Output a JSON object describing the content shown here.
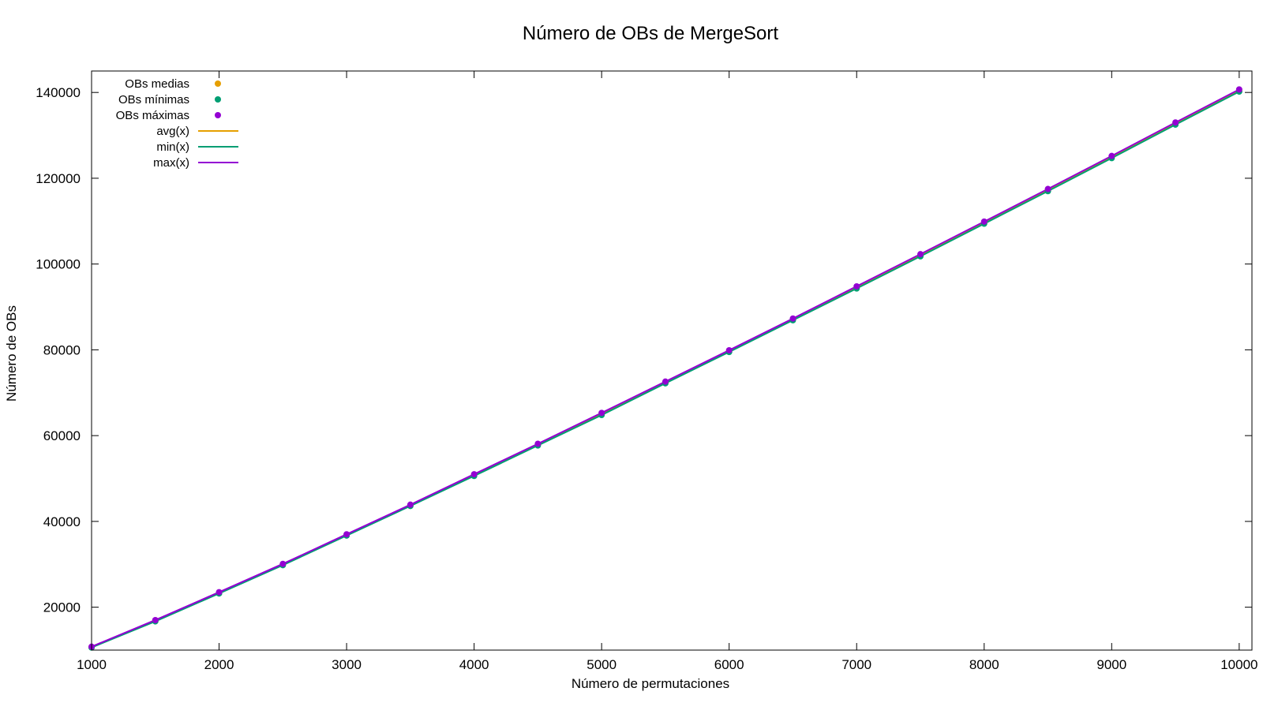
{
  "chart_data": {
    "type": "line",
    "title": "Número de OBs de MergeSort",
    "xlabel": "Número de permutaciones",
    "ylabel": "Número de OBs",
    "xlim": [
      1000,
      10100
    ],
    "ylim": [
      10000,
      145000
    ],
    "x_ticks": [
      1000,
      2000,
      3000,
      4000,
      5000,
      6000,
      7000,
      8000,
      9000,
      10000
    ],
    "y_ticks": [
      20000,
      40000,
      60000,
      80000,
      100000,
      120000,
      140000
    ],
    "grid": false,
    "legend_position": "top-left",
    "x": [
      1000,
      1500,
      2000,
      2500,
      3000,
      3500,
      4000,
      4500,
      5000,
      5500,
      6000,
      6500,
      7000,
      7500,
      8000,
      8500,
      9000,
      9500,
      10000
    ],
    "series": [
      {
        "name": "OBs medias",
        "kind": "points",
        "color": "#e69f00",
        "values": [
          10700,
          16850,
          23300,
          29900,
          36850,
          43750,
          50800,
          57900,
          65000,
          72400,
          79700,
          87100,
          94500,
          102000,
          109600,
          117200,
          124900,
          132700,
          140400
        ]
      },
      {
        "name": "OBs mínimas",
        "kind": "points",
        "color": "#009e73",
        "values": [
          10600,
          16700,
          23200,
          29800,
          36700,
          43600,
          50600,
          57700,
          64800,
          72200,
          79500,
          86900,
          94300,
          101800,
          109400,
          117000,
          124700,
          132500,
          140200
        ]
      },
      {
        "name": "OBs máximas",
        "kind": "points",
        "color": "#9400d3",
        "values": [
          10800,
          17000,
          23500,
          30100,
          37000,
          43900,
          51000,
          58100,
          65300,
          72600,
          79900,
          87300,
          94800,
          102300,
          109900,
          117500,
          125200,
          133000,
          140700
        ]
      },
      {
        "name": "avg(x)",
        "kind": "line",
        "color": "#e69f00",
        "values": [
          10700,
          16850,
          23300,
          29900,
          36850,
          43750,
          50800,
          57900,
          65000,
          72400,
          79700,
          87100,
          94500,
          102000,
          109600,
          117200,
          124900,
          132700,
          140400
        ]
      },
      {
        "name": "min(x)",
        "kind": "line",
        "color": "#009e73",
        "values": [
          10600,
          16700,
          23200,
          29800,
          36700,
          43600,
          50600,
          57700,
          64800,
          72200,
          79500,
          86900,
          94300,
          101800,
          109400,
          117000,
          124700,
          132500,
          140200
        ]
      },
      {
        "name": "max(x)",
        "kind": "line",
        "color": "#9400d3",
        "values": [
          10800,
          17000,
          23500,
          30100,
          37000,
          43900,
          51000,
          58100,
          65300,
          72600,
          79900,
          87300,
          94800,
          102300,
          109900,
          117500,
          125200,
          133000,
          140700
        ]
      }
    ]
  }
}
